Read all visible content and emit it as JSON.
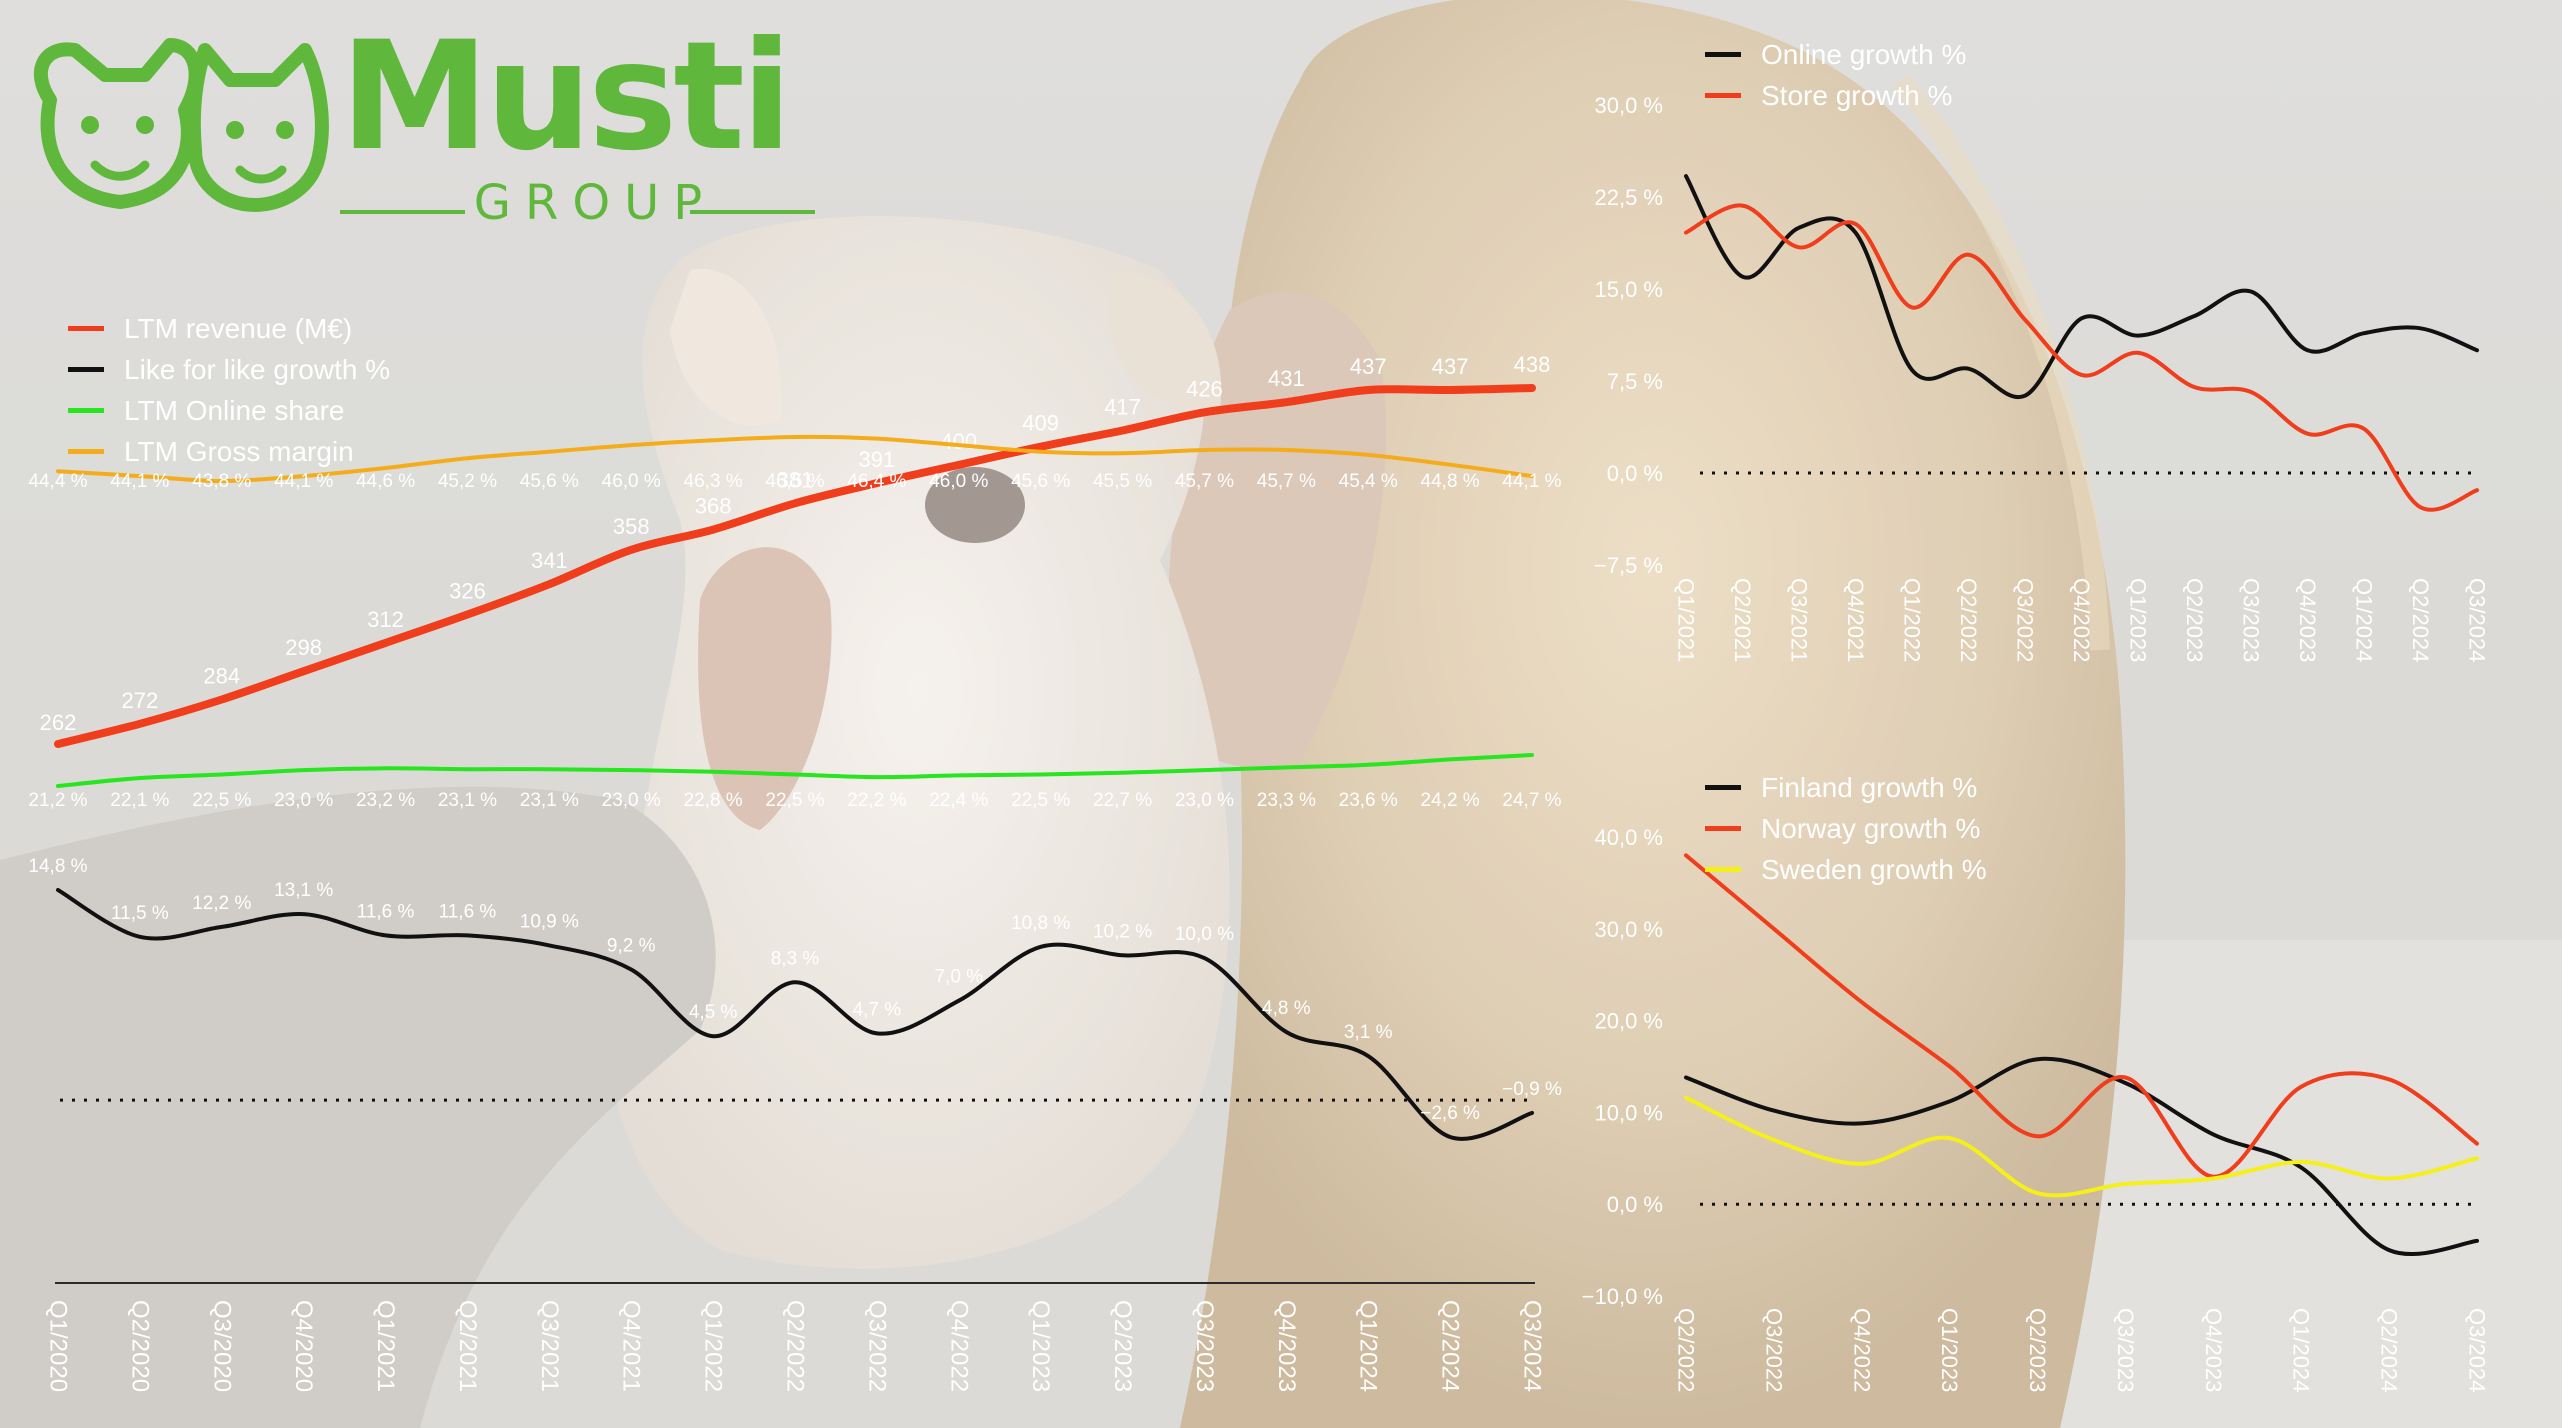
{
  "logo": {
    "name": "Musti",
    "sub": "GROUP",
    "color": "#5fb83c"
  },
  "main_legend": [
    {
      "label": "LTM revenue (M€)",
      "color": "#f03d1c"
    },
    {
      "label": "Like for like growth %",
      "color": "#111111"
    },
    {
      "label": "LTM Online share",
      "color": "#27e51f"
    },
    {
      "label": "LTM Gross margin",
      "color": "#f4ac1a"
    }
  ],
  "online_store_legend": [
    {
      "label": "Online growth %",
      "color": "#111111"
    },
    {
      "label": "Store growth %",
      "color": "#f03d1c"
    }
  ],
  "country_legend": [
    {
      "label": "Finland growth %",
      "color": "#111111"
    },
    {
      "label": "Norway growth %",
      "color": "#f03d1c"
    },
    {
      "label": "Sweden growth %",
      "color": "#f5f019"
    }
  ],
  "chart_data": [
    {
      "type": "line",
      "categories": [
        "Q1/2020",
        "Q2/2020",
        "Q3/2020",
        "Q4/2020",
        "Q1/2021",
        "Q2/2021",
        "Q3/2021",
        "Q4/2021",
        "Q1/2022",
        "Q2/2022",
        "Q3/2022",
        "Q4/2022",
        "Q1/2023",
        "Q2/2023",
        "Q3/2023",
        "Q4/2023",
        "Q1/2024",
        "Q2/2024",
        "Q3/2024"
      ],
      "series": [
        {
          "name": "LTM revenue (M€)",
          "color": "#f03d1c",
          "values": [
            262,
            272,
            284,
            298,
            312,
            326,
            341,
            358,
            368,
            381,
            391,
            400,
            409,
            417,
            426,
            431,
            437,
            437,
            438
          ],
          "labels": [
            "262",
            "272",
            "284",
            "298",
            "312",
            "326",
            "341",
            "358",
            "368",
            "381",
            "391",
            "400",
            "409",
            "417",
            "426",
            "431",
            "437",
            "437",
            "438"
          ]
        },
        {
          "name": "Like for like growth %",
          "color": "#111111",
          "values": [
            14.8,
            11.5,
            12.2,
            13.1,
            11.6,
            11.6,
            10.9,
            9.2,
            4.5,
            8.3,
            4.7,
            7.0,
            10.8,
            10.2,
            10.0,
            4.8,
            3.1,
            -2.6,
            -0.9
          ],
          "labels": [
            "14,8 %",
            "11,5 %",
            "12,2 %",
            "13,1 %",
            "11,6 %",
            "11,6 %",
            "10,9 %",
            "9,2 %",
            "4,5 %",
            "8,3 %",
            "4,7 %",
            "7,0 %",
            "10,8 %",
            "10,2 %",
            "10,0 %",
            "4,8 %",
            "3,1 %",
            "−2,6 %",
            "−0,9 %"
          ]
        },
        {
          "name": "LTM Online share",
          "color": "#27e51f",
          "values": [
            21.2,
            22.1,
            22.5,
            23.0,
            23.2,
            23.1,
            23.1,
            23.0,
            22.8,
            22.5,
            22.2,
            22.4,
            22.5,
            22.7,
            23.0,
            23.3,
            23.6,
            24.2,
            24.7
          ],
          "labels": [
            "21,2 %",
            "22,1 %",
            "22,5 %",
            "23,0 %",
            "23,2 %",
            "23,1 %",
            "23,1 %",
            "23,0 %",
            "22,8 %",
            "22,5 %",
            "22,2 %",
            "22,4 %",
            "22,5 %",
            "22,7 %",
            "23,0 %",
            "23,3 %",
            "23,6 %",
            "24,2 %",
            "24,7 %"
          ]
        },
        {
          "name": "LTM Gross margin",
          "color": "#f4ac1a",
          "values": [
            44.4,
            44.1,
            43.8,
            44.1,
            44.6,
            45.2,
            45.6,
            46.0,
            46.3,
            46.5,
            46.4,
            46.0,
            45.6,
            45.5,
            45.7,
            45.7,
            45.4,
            44.8,
            44.1
          ],
          "labels": [
            "44,4 %",
            "44,1 %",
            "43,8 %",
            "44,1 %",
            "44,6 %",
            "45,2 %",
            "45,6 %",
            "46,0 %",
            "46,3 %",
            "46,5 %",
            "46,4 %",
            "46,0 %",
            "45,6 %",
            "45,5 %",
            "45,7 %",
            "45,7 %",
            "45,4 %",
            "44,8 %",
            "44,1 %"
          ]
        }
      ]
    },
    {
      "type": "line",
      "categories": [
        "Q1/2021",
        "Q2/2021",
        "Q3/2021",
        "Q4/2021",
        "Q1/2022",
        "Q2/2022",
        "Q3/2022",
        "Q4/2022",
        "Q1/2023",
        "Q2/2023",
        "Q3/2023",
        "Q4/2023",
        "Q1/2024",
        "Q2/2024",
        "Q3/2024"
      ],
      "ylim": [
        -7.5,
        30.0
      ],
      "yticks": [
        30.0,
        22.5,
        15.0,
        7.5,
        0.0,
        -7.5
      ],
      "ytick_labels": [
        "30,0 %",
        "22,5 %",
        "15,0 %",
        "7,5 %",
        "0,0 %",
        "−7,5 %"
      ],
      "series": [
        {
          "name": "Online growth %",
          "color": "#111111",
          "values": [
            24.2,
            16.0,
            20.0,
            19.6,
            8.4,
            8.5,
            6.3,
            12.6,
            11.2,
            12.8,
            14.8,
            10.0,
            11.4,
            11.8,
            10.0
          ]
        },
        {
          "name": "Store growth %",
          "color": "#f03d1c",
          "values": [
            19.6,
            21.8,
            18.4,
            20.3,
            13.5,
            17.8,
            12.5,
            8.0,
            9.8,
            7.0,
            6.6,
            3.2,
            3.6,
            -2.8,
            -1.4
          ]
        }
      ]
    },
    {
      "type": "line",
      "categories": [
        "Q2/2022",
        "Q3/2022",
        "Q4/2022",
        "Q1/2023",
        "Q2/2023",
        "Q3/2023",
        "Q4/2023",
        "Q1/2024",
        "Q2/2024",
        "Q3/2024"
      ],
      "ylim": [
        -10.0,
        40.0
      ],
      "yticks": [
        40.0,
        30.0,
        20.0,
        10.0,
        0.0,
        -10.0
      ],
      "ytick_labels": [
        "40,0 %",
        "30,0 %",
        "20,0 %",
        "10,0 %",
        "0,0 %",
        "−10,0 %"
      ],
      "series": [
        {
          "name": "Finland growth %",
          "color": "#111111",
          "values": [
            13.8,
            10.2,
            8.8,
            11.2,
            15.8,
            13.2,
            7.6,
            4.0,
            -5.0,
            -4.0
          ]
        },
        {
          "name": "Norway growth %",
          "color": "#f03d1c",
          "values": [
            38.0,
            30.0,
            22.0,
            15.0,
            7.4,
            13.8,
            3.0,
            12.8,
            13.6,
            6.6
          ]
        },
        {
          "name": "Sweden growth %",
          "color": "#f5f019",
          "values": [
            11.6,
            7.0,
            4.4,
            7.2,
            1.2,
            2.2,
            2.8,
            4.6,
            2.8,
            5.0
          ]
        }
      ]
    }
  ]
}
